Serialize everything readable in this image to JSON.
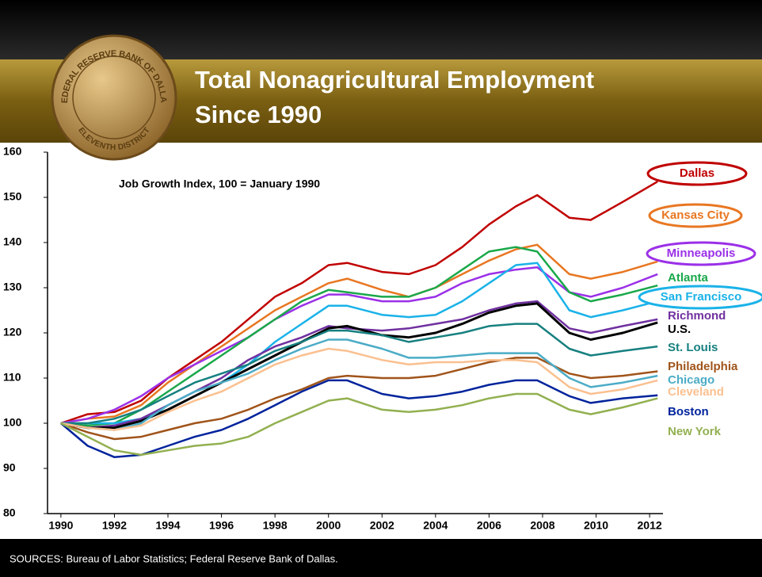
{
  "seal": {
    "top_text": "FEDERAL RESERVE BANK OF DALLAS",
    "bottom_text": "ELEVENTH DISTRICT"
  },
  "chart_data": {
    "type": "line",
    "title": [
      "Total Nonagricultural Employment",
      "Since 1990"
    ],
    "subtitle": "Job Growth Index, 100 = January 1990",
    "source": "SOURCES: Bureau of Labor Statistics; Federal Reserve Bank of Dallas.",
    "x": [
      1990,
      1991,
      1992,
      1993,
      1994,
      1995,
      1996,
      1997,
      1998,
      1999,
      2000,
      2000.7,
      2002,
      2003,
      2004,
      2005,
      2006,
      2007,
      2007.8,
      2009,
      2009.8,
      2011,
      2012.3
    ],
    "xlim": [
      1989.5,
      2012.5
    ],
    "xticks": [
      1990,
      1992,
      1994,
      1996,
      1998,
      2000,
      2002,
      2004,
      2006,
      2008,
      2010,
      2012
    ],
    "ylim": [
      80,
      160
    ],
    "yticks": [
      80,
      90,
      100,
      110,
      120,
      130,
      140,
      150,
      160
    ],
    "grid": false,
    "series": [
      {
        "name": "Dallas",
        "color": "#c00000",
        "values": [
          100,
          102,
          102.5,
          105,
          110,
          114,
          118,
          123,
          128,
          131,
          135,
          135.5,
          133.5,
          133,
          135,
          139,
          144,
          148,
          150.5,
          145.5,
          145,
          149,
          153.5
        ]
      },
      {
        "name": "Kansas City",
        "color": "#e87722",
        "values": [
          100,
          101,
          101.5,
          104,
          109,
          113,
          117,
          121,
          125,
          128,
          131,
          132,
          129.5,
          128,
          130,
          133,
          136,
          138.5,
          139.5,
          133,
          132,
          133.5,
          135.8
        ]
      },
      {
        "name": "Minneapolis",
        "color": "#9b30e8",
        "values": [
          100,
          101,
          103,
          106,
          110,
          113,
          116,
          119,
          123,
          126,
          128.5,
          128.5,
          127,
          127,
          128,
          131,
          133,
          134,
          134.5,
          129,
          128,
          130,
          133
        ]
      },
      {
        "name": "Atlanta",
        "color": "#1aa84a",
        "values": [
          100,
          99.5,
          100,
          103,
          107,
          111,
          115,
          119,
          123,
          127,
          129.5,
          129,
          128,
          128,
          130,
          134,
          138,
          139,
          138,
          129,
          127,
          128.5,
          130.5
        ]
      },
      {
        "name": "San Francisco",
        "color": "#1ab2e8",
        "values": [
          100,
          100,
          100,
          101,
          103,
          106,
          109,
          113,
          118,
          122,
          126,
          126,
          124,
          123.5,
          124,
          127,
          131,
          135,
          135.5,
          125,
          123.5,
          125,
          127
        ]
      },
      {
        "name": "Richmond",
        "color": "#7030a0",
        "values": [
          100,
          99,
          99.5,
          101,
          104,
          107,
          110,
          114,
          117,
          119,
          121.5,
          121,
          120.5,
          121,
          122,
          123,
          125,
          126.5,
          127,
          121,
          120,
          121.5,
          123
        ]
      },
      {
        "name": "U.S.",
        "color": "#000000",
        "values": [
          100,
          99,
          99,
          100.5,
          103,
          106,
          109,
          112,
          115,
          118,
          121,
          121.5,
          119.5,
          119,
          120,
          122,
          124.5,
          126,
          126.5,
          120,
          118.5,
          120,
          122.3
        ]
      },
      {
        "name": "St. Louis",
        "color": "#178080",
        "values": [
          100,
          100,
          101,
          103,
          106,
          109,
          111,
          113,
          116,
          118,
          120.5,
          120.5,
          119.5,
          118,
          119,
          120,
          121.5,
          122,
          122,
          116.5,
          115,
          116,
          117
        ]
      },
      {
        "name": "Philadelphia",
        "color": "#a0541a",
        "values": [
          100,
          98,
          96.5,
          97,
          98.5,
          100,
          101,
          103,
          105.5,
          107.5,
          110,
          110.5,
          110,
          110,
          110.5,
          112,
          113.5,
          114.5,
          114.5,
          111,
          110,
          110.5,
          111.5
        ]
      },
      {
        "name": "Chicago",
        "color": "#4bacc6",
        "values": [
          100,
          99,
          98.5,
          100,
          104,
          107,
          109,
          111,
          114,
          116.5,
          118.5,
          118.5,
          116.5,
          114.5,
          114.5,
          115,
          115.5,
          115.5,
          115.5,
          110,
          108,
          109,
          110.5
        ]
      },
      {
        "name": "Cleveland",
        "color": "#fac090",
        "values": [
          100,
          99,
          98.5,
          99.5,
          102.5,
          105,
          107,
          110,
          113,
          115,
          116.5,
          116,
          114,
          113,
          113.5,
          113.5,
          114,
          114,
          113.5,
          108,
          106.5,
          107.5,
          109.5
        ]
      },
      {
        "name": "Boston",
        "color": "#00239c",
        "values": [
          100,
          95,
          92.5,
          93,
          95,
          97,
          98.5,
          101,
          104,
          107,
          109.5,
          109.5,
          106.5,
          105.5,
          106,
          107,
          108.5,
          109.5,
          109.5,
          106,
          104.5,
          105.5,
          106.2
        ]
      },
      {
        "name": "New York",
        "color": "#92b050",
        "values": [
          100,
          97,
          94,
          93,
          94,
          95,
          95.5,
          97,
          100,
          102.5,
          105,
          105.5,
          103,
          102.5,
          103,
          104,
          105.5,
          106.5,
          106.5,
          103,
          102,
          103.5,
          105.5
        ]
      }
    ]
  }
}
